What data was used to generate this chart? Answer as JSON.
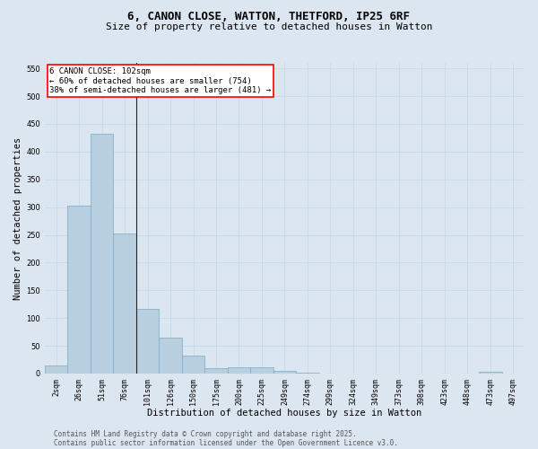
{
  "title_line1": "6, CANON CLOSE, WATTON, THETFORD, IP25 6RF",
  "title_line2": "Size of property relative to detached houses in Watton",
  "xlabel": "Distribution of detached houses by size in Watton",
  "ylabel": "Number of detached properties",
  "categories": [
    "2sqm",
    "26sqm",
    "51sqm",
    "76sqm",
    "101sqm",
    "126sqm",
    "150sqm",
    "175sqm",
    "200sqm",
    "225sqm",
    "249sqm",
    "274sqm",
    "299sqm",
    "324sqm",
    "349sqm",
    "373sqm",
    "398sqm",
    "423sqm",
    "448sqm",
    "473sqm",
    "497sqm"
  ],
  "values": [
    14,
    302,
    432,
    253,
    117,
    65,
    33,
    9,
    11,
    12,
    5,
    2,
    0,
    0,
    0,
    0,
    0,
    0,
    0,
    4,
    0
  ],
  "bar_color": "#b8cfe0",
  "bar_edge_color": "#7aaac8",
  "background_color": "#dce6f0",
  "grid_color": "#f0f4f8",
  "ylim": [
    0,
    560
  ],
  "yticks": [
    0,
    50,
    100,
    150,
    200,
    250,
    300,
    350,
    400,
    450,
    500,
    550
  ],
  "annotation_text": "6 CANON CLOSE: 102sqm\n← 60% of detached houses are smaller (754)\n38% of semi-detached houses are larger (481) →",
  "vline_x": 3.5,
  "footer_line1": "Contains HM Land Registry data © Crown copyright and database right 2025.",
  "footer_line2": "Contains public sector information licensed under the Open Government Licence v3.0.",
  "title_fontsize": 9,
  "subtitle_fontsize": 8,
  "tick_fontsize": 6,
  "label_fontsize": 7.5,
  "annotation_fontsize": 6.5,
  "footer_fontsize": 5.5
}
